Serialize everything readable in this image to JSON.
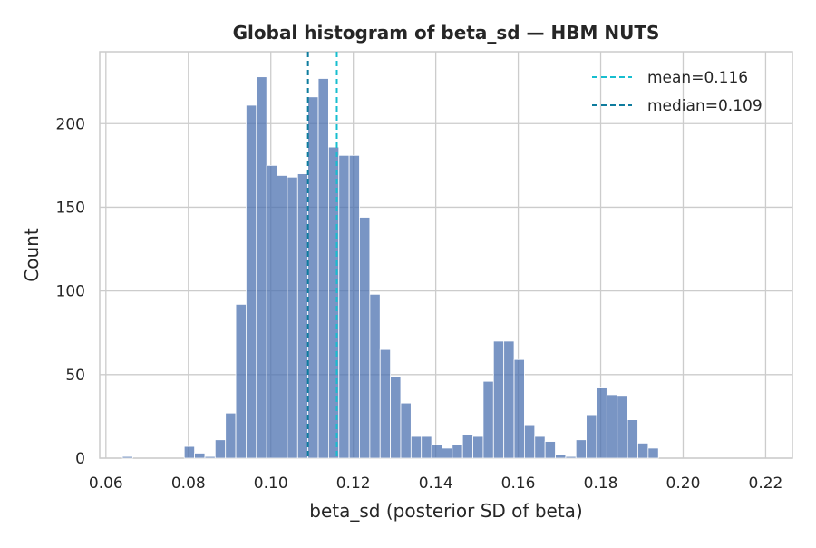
{
  "chart_data": {
    "type": "bar",
    "title": "Global histogram of beta_sd — HBM NUTS",
    "xlabel": "beta_sd (posterior SD of beta)",
    "ylabel": "Count",
    "xlim": [
      0.0585,
      0.2265
    ],
    "ylim": [
      0,
      243
    ],
    "xticks": [
      0.06,
      0.08,
      0.1,
      0.12,
      0.14,
      0.16,
      0.18,
      0.2,
      0.22
    ],
    "xtick_labels": [
      "0.06",
      "0.08",
      "0.10",
      "0.12",
      "0.14",
      "0.16",
      "0.18",
      "0.20",
      "0.22"
    ],
    "yticks": [
      0,
      50,
      100,
      150,
      200
    ],
    "ytick_labels": [
      "0",
      "50",
      "100",
      "150",
      "200"
    ],
    "grid": true,
    "legend_position": "top-right",
    "bin_start": 0.0615,
    "bin_width": 0.0025,
    "counts": [
      0,
      1,
      0,
      0,
      0,
      0,
      0,
      7,
      3,
      1,
      11,
      27,
      92,
      211,
      228,
      175,
      169,
      168,
      170,
      216,
      227,
      186,
      181,
      181,
      144,
      98,
      65,
      49,
      33,
      13,
      13,
      8,
      6,
      8,
      14,
      13,
      46,
      70,
      70,
      59,
      20,
      13,
      10,
      2,
      1,
      11,
      26,
      42,
      38,
      37,
      23,
      9,
      6,
      0,
      0,
      0,
      0,
      0,
      0,
      0,
      0,
      0,
      0,
      0,
      0
    ],
    "bar_color": "#4C72B0",
    "reference_lines": [
      {
        "name": "mean=0.116",
        "x": 0.116,
        "color": "#17BECF",
        "style": "dashed"
      },
      {
        "name": "median=0.109",
        "x": 0.109,
        "color": "#0E7C9E",
        "style": "dashed"
      }
    ]
  }
}
